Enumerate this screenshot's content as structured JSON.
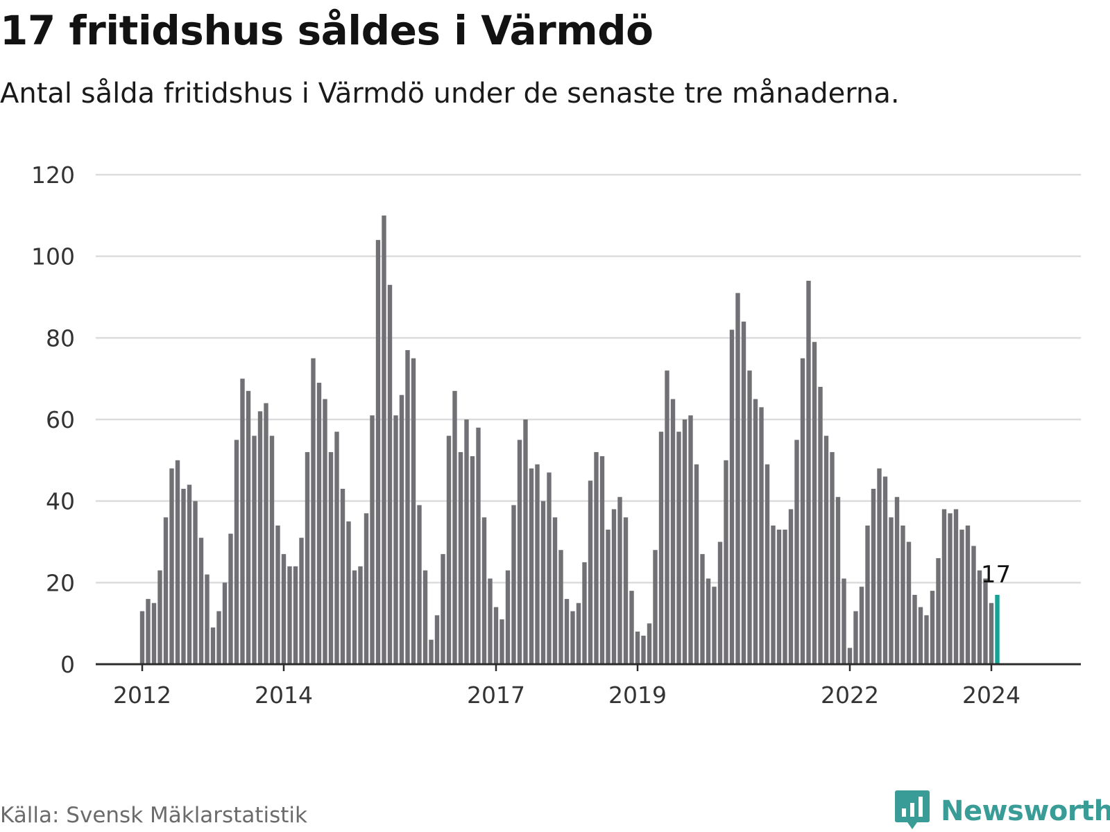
{
  "title": "17 fritidshus såldes i Värmdö",
  "subtitle": "Antal sålda fritidshus i Värmdö under de senaste tre månaderna.",
  "source": "Källa: Svensk Mäklarstatistik",
  "brand": {
    "name": "Newsworthy",
    "color": "#3a9c96",
    "icon": "newsworthy-logo-icon"
  },
  "colors": {
    "bar": "#717075",
    "highlight": "#16a295",
    "grid": "#dcdcdc",
    "axis": "#2b2b2b"
  },
  "chart_data": {
    "type": "bar",
    "title": "17 fritidshus såldes i Värmdö",
    "subtitle": "Antal sålda fritidshus i Värmdö under de senaste tre månaderna.",
    "xlabel": "",
    "ylabel": "",
    "ylim": [
      0,
      120
    ],
    "yticks": [
      0,
      20,
      40,
      60,
      80,
      100,
      120
    ],
    "xtick_labels": [
      "2012",
      "2014",
      "2017",
      "2019",
      "2022",
      "2024"
    ],
    "xtick_positions": [
      0,
      24,
      60,
      84,
      120,
      144
    ],
    "grid": true,
    "legend": "none",
    "start": "2012-01",
    "frequency": "monthly",
    "highlight_index": 145,
    "annotation": {
      "index": 145,
      "text": "17"
    },
    "values": [
      13,
      16,
      15,
      23,
      36,
      48,
      50,
      43,
      44,
      40,
      31,
      22,
      9,
      13,
      20,
      32,
      55,
      70,
      67,
      56,
      62,
      64,
      56,
      34,
      27,
      24,
      24,
      31,
      52,
      75,
      69,
      65,
      52,
      57,
      43,
      35,
      23,
      24,
      37,
      61,
      104,
      110,
      93,
      61,
      66,
      77,
      75,
      39,
      23,
      6,
      12,
      27,
      56,
      67,
      52,
      60,
      51,
      58,
      36,
      21,
      14,
      11,
      23,
      39,
      55,
      60,
      48,
      49,
      40,
      47,
      36,
      28,
      16,
      13,
      15,
      25,
      45,
      52,
      51,
      33,
      38,
      41,
      36,
      18,
      8,
      7,
      10,
      28,
      57,
      72,
      65,
      57,
      60,
      61,
      49,
      27,
      21,
      19,
      30,
      50,
      82,
      91,
      84,
      72,
      65,
      63,
      49,
      34,
      33,
      33,
      38,
      55,
      75,
      94,
      79,
      68,
      56,
      52,
      41,
      21,
      4,
      13,
      19,
      34,
      43,
      48,
      46,
      36,
      41,
      34,
      30,
      17,
      14,
      12,
      18,
      26,
      38,
      37,
      38,
      33,
      34,
      29,
      23,
      21,
      15,
      17
    ]
  }
}
